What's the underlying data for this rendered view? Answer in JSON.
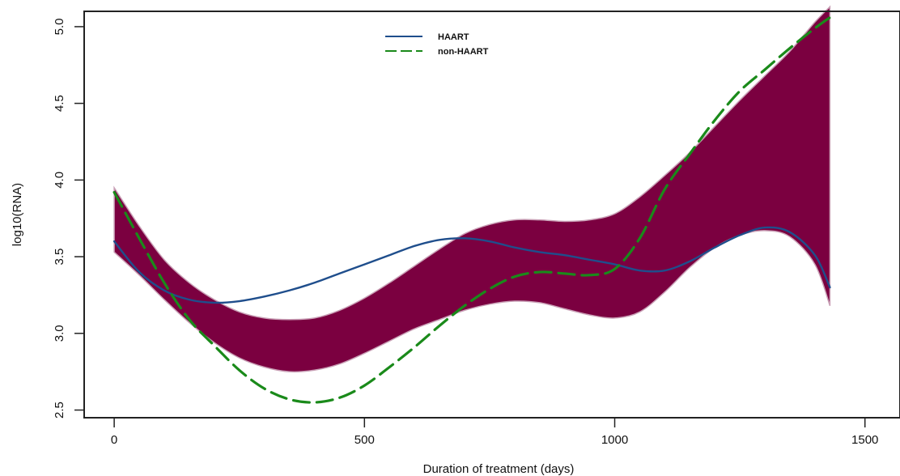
{
  "chart_data": {
    "type": "line",
    "title": "",
    "xlabel": "Duration of treatment (days)",
    "ylabel": "log10(RNA)",
    "xlim": [
      -60,
      1570
    ],
    "ylim": [
      2.45,
      5.1
    ],
    "x_ticks": [
      0,
      500,
      1000,
      1500
    ],
    "x_tick_labels": [
      "0",
      "500",
      "1000",
      "1500"
    ],
    "y_ticks": [
      2.5,
      3.0,
      3.5,
      4.0,
      4.5,
      5.0
    ],
    "y_tick_labels": [
      "2.5",
      "3.0",
      "3.5",
      "4.0",
      "4.5",
      "5.0"
    ],
    "grid": false,
    "legend_position": "top-center",
    "band": {
      "color": "#7b0040",
      "x": [
        0,
        50,
        100,
        150,
        200,
        250,
        300,
        350,
        400,
        450,
        500,
        550,
        600,
        650,
        700,
        750,
        800,
        850,
        900,
        950,
        1000,
        1050,
        1100,
        1150,
        1200,
        1250,
        1300,
        1350,
        1400,
        1430
      ],
      "upper": [
        3.95,
        3.7,
        3.48,
        3.33,
        3.22,
        3.14,
        3.1,
        3.09,
        3.1,
        3.15,
        3.23,
        3.33,
        3.44,
        3.55,
        3.65,
        3.71,
        3.74,
        3.74,
        3.73,
        3.74,
        3.78,
        3.89,
        4.03,
        4.18,
        4.35,
        4.52,
        4.68,
        4.84,
        5.03,
        5.13
      ],
      "lower": [
        3.53,
        3.38,
        3.22,
        3.07,
        2.94,
        2.84,
        2.78,
        2.75,
        2.76,
        2.8,
        2.87,
        2.95,
        3.03,
        3.09,
        3.15,
        3.19,
        3.21,
        3.2,
        3.16,
        3.12,
        3.1,
        3.14,
        3.27,
        3.43,
        3.56,
        3.64,
        3.67,
        3.63,
        3.45,
        3.18
      ]
    },
    "series": [
      {
        "name": "HAART",
        "color": "#1f4e8c",
        "dash": "solid",
        "x": [
          0,
          50,
          100,
          150,
          200,
          250,
          300,
          350,
          400,
          450,
          500,
          550,
          600,
          650,
          700,
          750,
          800,
          850,
          900,
          950,
          1000,
          1050,
          1100,
          1150,
          1200,
          1250,
          1300,
          1350,
          1400,
          1430
        ],
        "values": [
          3.6,
          3.4,
          3.28,
          3.22,
          3.2,
          3.21,
          3.24,
          3.28,
          3.33,
          3.39,
          3.45,
          3.51,
          3.57,
          3.61,
          3.62,
          3.6,
          3.56,
          3.53,
          3.51,
          3.48,
          3.45,
          3.41,
          3.41,
          3.47,
          3.56,
          3.64,
          3.69,
          3.66,
          3.51,
          3.3
        ]
      },
      {
        "name": "non-HAART",
        "color": "#1a8a1a",
        "dash": "dashed",
        "x": [
          0,
          50,
          100,
          150,
          200,
          250,
          300,
          350,
          400,
          450,
          500,
          550,
          600,
          650,
          700,
          750,
          800,
          850,
          900,
          950,
          1000,
          1050,
          1100,
          1150,
          1200,
          1250,
          1300,
          1350,
          1400,
          1430
        ],
        "values": [
          3.92,
          3.62,
          3.33,
          3.09,
          2.92,
          2.76,
          2.64,
          2.57,
          2.55,
          2.58,
          2.66,
          2.78,
          2.91,
          3.05,
          3.18,
          3.29,
          3.37,
          3.4,
          3.39,
          3.38,
          3.42,
          3.62,
          3.94,
          4.17,
          4.39,
          4.58,
          4.72,
          4.86,
          4.99,
          5.06
        ]
      }
    ]
  }
}
